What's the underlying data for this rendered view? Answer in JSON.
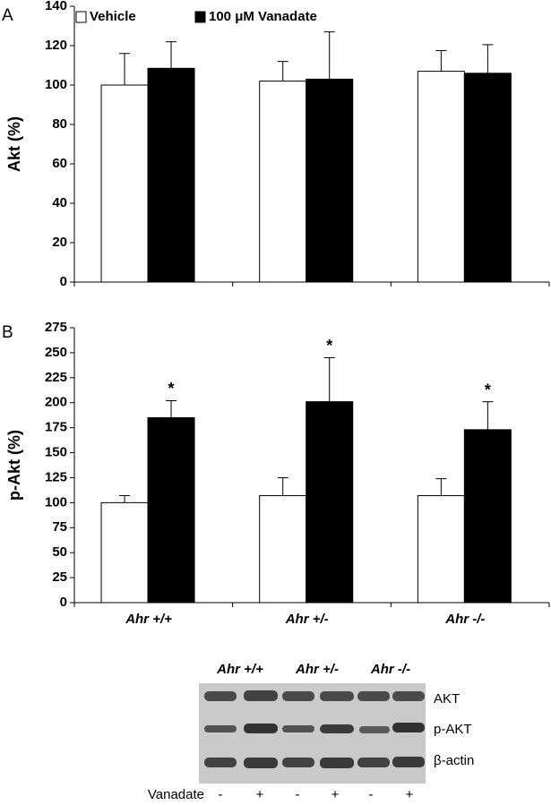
{
  "chart_data": [
    {
      "type": "bar",
      "panel": "A",
      "y_label": "Akt (%)",
      "categories": [
        null,
        null,
        null
      ],
      "series": [
        {
          "name": "Vehicle",
          "color": "#ffffff",
          "values": [
            100,
            102,
            107
          ],
          "errors": [
            16,
            10,
            10.5
          ]
        },
        {
          "name": "100 μM Vanadate",
          "color": "#000000",
          "values": [
            108.5,
            103,
            106
          ],
          "errors": [
            13.5,
            24,
            14.5
          ]
        }
      ],
      "ylim": [
        0,
        140
      ],
      "yticks": [
        0,
        20,
        40,
        60,
        80,
        100,
        120,
        140
      ],
      "legend": "top-left"
    },
    {
      "type": "bar",
      "panel": "B",
      "y_label": "p-Akt (%)",
      "categories": [
        "Ahr +/+",
        "Ahr +/-",
        "Ahr -/-"
      ],
      "series": [
        {
          "color": "#ffffff",
          "values": [
            100,
            107,
            107
          ],
          "errors": [
            7,
            18,
            17
          ]
        },
        {
          "color": "#000000",
          "values": [
            185,
            201,
            173
          ],
          "errors": [
            17,
            44,
            28
          ],
          "significance": [
            "*",
            "*",
            "*"
          ]
        }
      ],
      "ylim": [
        0,
        275
      ],
      "yticks": [
        0,
        25,
        50,
        75,
        100,
        125,
        150,
        175,
        200,
        225,
        250,
        275
      ]
    }
  ],
  "blot": {
    "lanes": [
      "Ahr +/+",
      "Ahr +/-",
      "Ahr -/-"
    ],
    "rows": [
      "AKT",
      "p-AKT",
      "β-actin"
    ],
    "treatment": "Vanadate",
    "treatment_signs": [
      "-",
      "+",
      "-",
      "+",
      "-",
      "+"
    ]
  }
}
